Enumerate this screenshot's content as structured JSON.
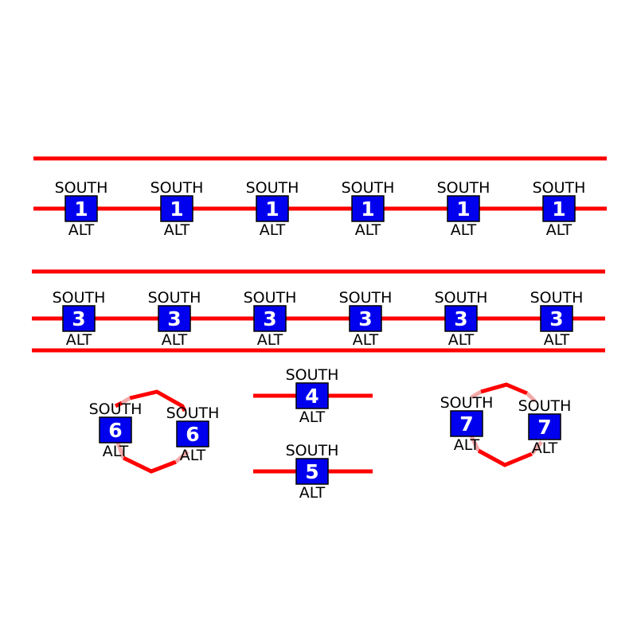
{
  "colors": {
    "road": "#ff0000",
    "road_faint": "#f4a8a8",
    "shield": "#0000ee",
    "shield_text": "#ffffff",
    "label_text": "#000000",
    "background": "#ffffff"
  },
  "row1": {
    "markers": [
      {
        "top": "SOUTH",
        "num": "1",
        "bottom": "ALT"
      },
      {
        "top": "SOUTH",
        "num": "1",
        "bottom": "ALT"
      },
      {
        "top": "SOUTH",
        "num": "1",
        "bottom": "ALT"
      },
      {
        "top": "SOUTH",
        "num": "1",
        "bottom": "ALT"
      },
      {
        "top": "SOUTH",
        "num": "1",
        "bottom": "ALT"
      },
      {
        "top": "SOUTH",
        "num": "1",
        "bottom": "ALT"
      }
    ]
  },
  "row2": {
    "markers": [
      {
        "top": "SOUTH",
        "num": "3",
        "bottom": "ALT"
      },
      {
        "top": "SOUTH",
        "num": "3",
        "bottom": "ALT"
      },
      {
        "top": "SOUTH",
        "num": "3",
        "bottom": "ALT"
      },
      {
        "top": "SOUTH",
        "num": "3",
        "bottom": "ALT"
      },
      {
        "top": "SOUTH",
        "num": "3",
        "bottom": "ALT"
      },
      {
        "top": "SOUTH",
        "num": "3",
        "bottom": "ALT"
      }
    ]
  },
  "hex_left": {
    "markers": [
      {
        "top": "SOUTH",
        "num": "6",
        "bottom": "ALT"
      },
      {
        "top": "SOUTH",
        "num": "6",
        "bottom": "ALT"
      }
    ]
  },
  "middle": {
    "upper": {
      "top": "SOUTH",
      "num": "4",
      "bottom": "ALT"
    },
    "lower": {
      "top": "SOUTH",
      "num": "5",
      "bottom": "ALT"
    }
  },
  "hex_right": {
    "markers": [
      {
        "top": "SOUTH",
        "num": "7",
        "bottom": "ALT"
      },
      {
        "top": "SOUTH",
        "num": "7",
        "bottom": "ALT"
      }
    ]
  }
}
